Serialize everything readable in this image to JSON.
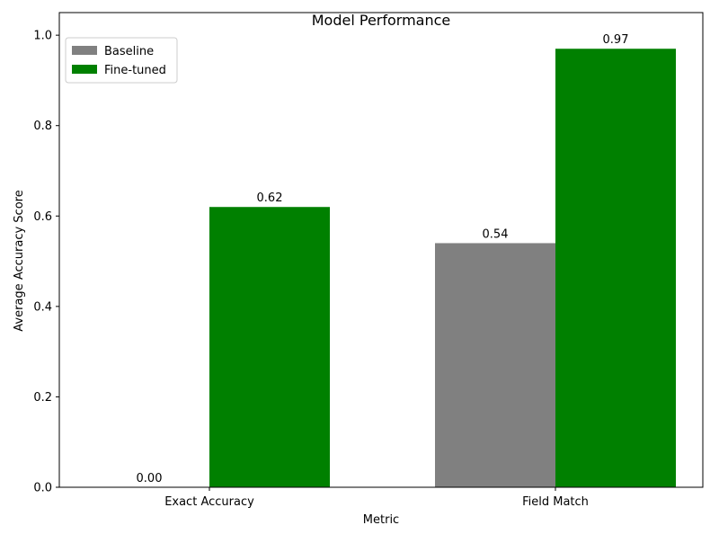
{
  "chart_data": {
    "type": "bar",
    "title": "Model Performance",
    "xlabel": "Metric",
    "ylabel": "Average Accuracy Score",
    "categories": [
      "Exact Accuracy",
      "Field Match"
    ],
    "series": [
      {
        "name": "Baseline",
        "values": [
          0.0,
          0.54
        ],
        "color": "#808080"
      },
      {
        "name": "Fine-tuned",
        "values": [
          0.62,
          0.97
        ],
        "color": "#008000"
      }
    ],
    "ylim": [
      0,
      1.05
    ],
    "yticks": [
      0.0,
      0.2,
      0.4,
      0.6,
      0.8,
      1.0
    ],
    "ytick_labels": [
      "0.0",
      "0.2",
      "0.4",
      "0.6",
      "0.8",
      "1.0"
    ],
    "data_labels": [
      [
        "0.00",
        "0.54"
      ],
      [
        "0.62",
        "0.97"
      ]
    ],
    "grid": false,
    "legend_position": "top-left"
  }
}
